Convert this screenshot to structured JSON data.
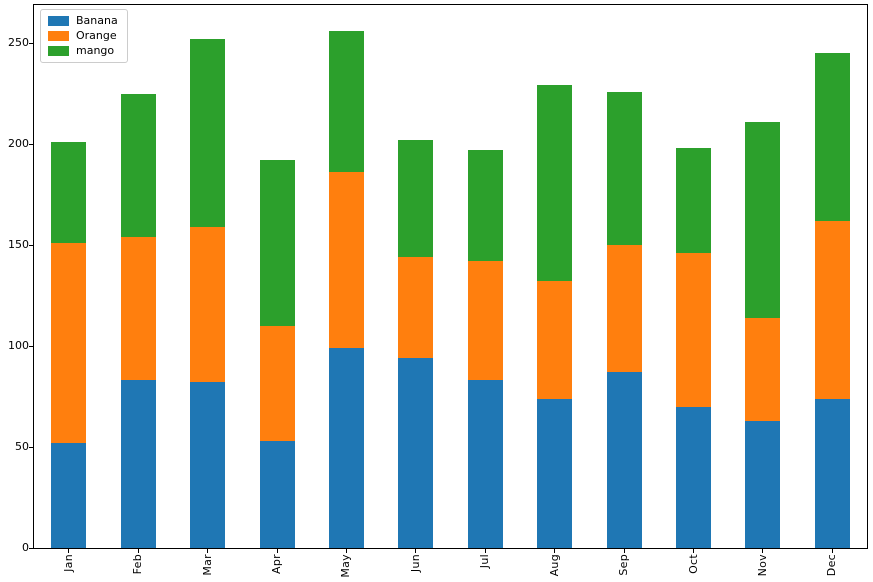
{
  "chart_data": {
    "type": "bar",
    "stacked": true,
    "title": "",
    "xlabel": "",
    "ylabel": "",
    "categories": [
      "Jan",
      "Feb",
      "Mar",
      "Apr",
      "May",
      "Jun",
      "Jul",
      "Aug",
      "Sep",
      "Oct",
      "Nov",
      "Dec"
    ],
    "series": [
      {
        "name": "Banana",
        "color": "#1f77b4",
        "values": [
          52,
          83,
          82,
          53,
          99,
          94,
          83,
          74,
          87,
          70,
          63,
          74
        ]
      },
      {
        "name": "Orange",
        "color": "#ff7f0e",
        "values": [
          99,
          71,
          77,
          57,
          87,
          50,
          59,
          58,
          63,
          76,
          51,
          88
        ]
      },
      {
        "name": "mango",
        "color": "#2ca02c",
        "values": [
          50,
          71,
          93,
          82,
          70,
          58,
          55,
          97,
          76,
          52,
          97,
          83
        ]
      }
    ],
    "totals": [
      201,
      225,
      252,
      192,
      256,
      202,
      197,
      229,
      226,
      198,
      211,
      245
    ],
    "yticks": [
      0,
      50,
      100,
      150,
      200,
      250
    ],
    "ylim": [
      0,
      268.8
    ],
    "x_tick_rotation": 90,
    "grid": false,
    "legend_position": "upper left",
    "legend_labels": [
      "Banana",
      "Orange",
      "mango"
    ]
  },
  "colors": {
    "background": "#ffffff",
    "spine": "#000000",
    "tick_label": "#000000",
    "legend_border": "#cccccc"
  }
}
